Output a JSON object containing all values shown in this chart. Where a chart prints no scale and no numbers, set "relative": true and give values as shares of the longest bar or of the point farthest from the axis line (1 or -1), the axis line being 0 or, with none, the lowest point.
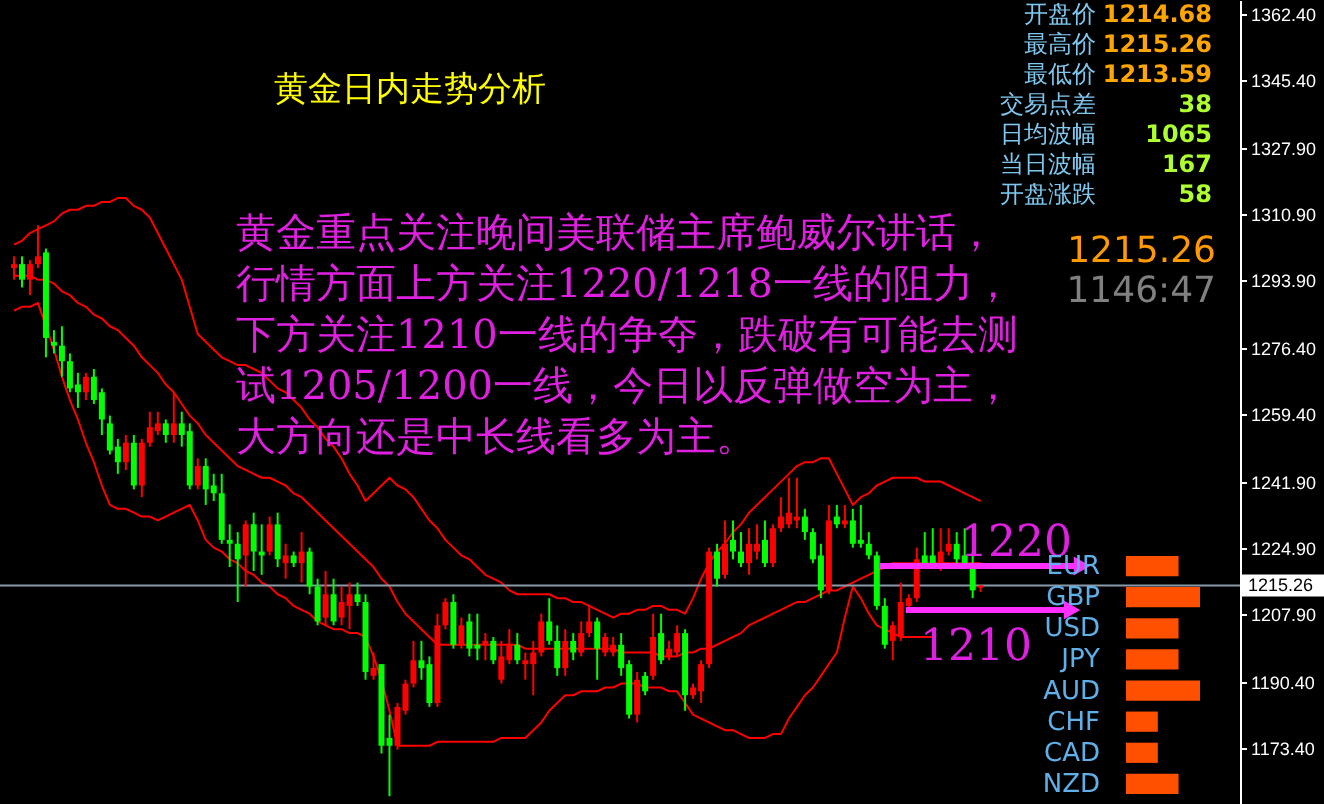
{
  "chart_data": [
    {
      "type": "candlestick",
      "title": "黄金日内走势分析",
      "categories": [
        null,
        null,
        null,
        null,
        null,
        null,
        null,
        null,
        null,
        null,
        null,
        null,
        null,
        null,
        null,
        null,
        null,
        null,
        null,
        null,
        null,
        null,
        null,
        null,
        null,
        null,
        null,
        null,
        null,
        null,
        null,
        null,
        null,
        null,
        null,
        null,
        null,
        null,
        null,
        null,
        null,
        null,
        null,
        null,
        null,
        null,
        null,
        null,
        null,
        null,
        null,
        null,
        null,
        null,
        null,
        null,
        null,
        null,
        null,
        null,
        null,
        null,
        null,
        null,
        null,
        null,
        null,
        null,
        null,
        null,
        null,
        null,
        null,
        null,
        null,
        null,
        null,
        null,
        null,
        null,
        null,
        null,
        null,
        null,
        null,
        null,
        null,
        null,
        null,
        null,
        null,
        null,
        null,
        null,
        null,
        null,
        null,
        null,
        null,
        null,
        null,
        null,
        null,
        null,
        null,
        null,
        null,
        null,
        null,
        null,
        null,
        null,
        null,
        null,
        null,
        null,
        null,
        null,
        null,
        null,
        null,
        null
      ],
      "ohlc": [
        [
          1297,
          1300,
          1294,
          1298
        ],
        [
          1298,
          1300,
          1292,
          1294
        ],
        [
          1294,
          1299,
          1290,
          1298
        ],
        [
          1298,
          1308,
          1297,
          1300
        ],
        [
          1301,
          1302,
          1274,
          1279
        ],
        [
          1278,
          1281,
          1275,
          1277
        ],
        [
          1277,
          1282,
          1269,
          1273
        ],
        [
          1273,
          1275,
          1265,
          1266
        ],
        [
          1267,
          1270,
          1261,
          1265
        ],
        [
          1265,
          1270,
          1263,
          1269
        ],
        [
          1269,
          1271,
          1262,
          1263
        ],
        [
          1265,
          1266,
          1254,
          1258
        ],
        [
          1257,
          1259,
          1249,
          1250
        ],
        [
          1251,
          1253,
          1244,
          1247
        ],
        [
          1247,
          1254,
          1245,
          1252
        ],
        [
          1252,
          1254,
          1240,
          1241
        ],
        [
          1241,
          1253,
          1238,
          1252
        ],
        [
          1252,
          1260,
          1251,
          1256
        ],
        [
          1255,
          1260,
          1254,
          1257
        ],
        [
          1257,
          1258,
          1252,
          1254
        ],
        [
          1254,
          1265,
          1252,
          1257
        ],
        [
          1257,
          1260,
          1251,
          1254
        ],
        [
          1255,
          1257,
          1240,
          1241
        ],
        [
          1241,
          1248,
          1240,
          1246
        ],
        [
          1246,
          1248,
          1236,
          1240
        ],
        [
          1241,
          1244,
          1237,
          1239
        ],
        [
          1239,
          1244,
          1226,
          1227
        ],
        [
          1227,
          1231,
          1220,
          1226
        ],
        [
          1226,
          1229,
          1211,
          1222
        ],
        [
          1223,
          1232,
          1215,
          1231
        ],
        [
          1231,
          1234,
          1219,
          1224
        ],
        [
          1224,
          1231,
          1218,
          1223
        ],
        [
          1224,
          1233,
          1223,
          1231
        ],
        [
          1231,
          1234,
          1220,
          1222
        ],
        [
          1221,
          1226,
          1217,
          1223
        ],
        [
          1223,
          1224,
          1220,
          1221
        ],
        [
          1221,
          1229,
          1216,
          1224
        ],
        [
          1224,
          1225,
          1213,
          1215
        ],
        [
          1215,
          1217,
          1205,
          1206
        ],
        [
          1207,
          1219,
          1205,
          1213
        ],
        [
          1213,
          1217,
          1205,
          1206
        ],
        [
          1207,
          1215,
          1205,
          1211
        ],
        [
          1210,
          1216,
          1204,
          1213
        ],
        [
          1213,
          1216,
          1210,
          1211
        ],
        [
          1211,
          1213,
          1191,
          1193
        ],
        [
          1192,
          1198,
          1191,
          1194
        ],
        [
          1195,
          1195,
          1172,
          1174
        ],
        [
          1176,
          1182,
          1161,
          1174
        ],
        [
          1174,
          1185,
          1173,
          1184
        ],
        [
          1183,
          1191,
          1182,
          1190
        ],
        [
          1190,
          1201,
          1189,
          1196
        ],
        [
          1196,
          1201,
          1191,
          1194
        ],
        [
          1195,
          1197,
          1184,
          1185
        ],
        [
          1185,
          1208,
          1184,
          1205
        ],
        [
          1205,
          1212,
          1204,
          1211
        ],
        [
          1211,
          1213,
          1199,
          1200
        ],
        [
          1200,
          1207,
          1199,
          1205
        ],
        [
          1206,
          1208,
          1197,
          1199
        ],
        [
          1200,
          1208,
          1196,
          1199
        ],
        [
          1200,
          1203,
          1196,
          1201
        ],
        [
          1201,
          1202,
          1195,
          1196
        ],
        [
          1191,
          1201,
          1190,
          1197
        ],
        [
          1196,
          1204,
          1195,
          1200
        ],
        [
          1200,
          1203,
          1195,
          1196
        ],
        [
          1195,
          1198,
          1191,
          1196
        ],
        [
          1195,
          1201,
          1187,
          1198
        ],
        [
          1198,
          1208,
          1197,
          1206
        ],
        [
          1206,
          1212,
          1200,
          1201
        ],
        [
          1201,
          1205,
          1192,
          1194
        ],
        [
          1194,
          1204,
          1192,
          1201
        ],
        [
          1201,
          1203,
          1196,
          1198
        ],
        [
          1198,
          1206,
          1197,
          1203
        ],
        [
          1203,
          1210,
          1202,
          1206
        ],
        [
          1206,
          1207,
          1191,
          1199
        ],
        [
          1198,
          1203,
          1197,
          1202
        ],
        [
          1198,
          1202,
          1197,
          1200
        ],
        [
          1200,
          1203,
          1192,
          1194
        ],
        [
          1195,
          1196,
          1181,
          1182
        ],
        [
          1182,
          1193,
          1180,
          1191
        ],
        [
          1192,
          1193,
          1187,
          1188
        ],
        [
          1192,
          1208,
          1191,
          1202
        ],
        [
          1203,
          1208,
          1195,
          1196
        ],
        [
          1197,
          1201,
          1196,
          1199
        ],
        [
          1198,
          1205,
          1197,
          1203
        ],
        [
          1203,
          1204,
          1183,
          1187
        ],
        [
          1187,
          1190,
          1186,
          1189
        ],
        [
          1188,
          1196,
          1185,
          1195
        ],
        [
          1195,
          1225,
          1194,
          1224
        ],
        [
          1224,
          1226,
          1215,
          1217
        ],
        [
          1218,
          1232,
          1217,
          1226
        ],
        [
          1227,
          1232,
          1222,
          1224
        ],
        [
          1224,
          1229,
          1220,
          1221
        ],
        [
          1221,
          1230,
          1218,
          1226
        ],
        [
          1224,
          1231,
          1222,
          1226
        ],
        [
          1227,
          1232,
          1220,
          1221
        ],
        [
          1221,
          1231,
          1220,
          1230
        ],
        [
          1230,
          1238,
          1229,
          1233
        ],
        [
          1231,
          1243,
          1230,
          1234
        ],
        [
          1232,
          1243,
          1230,
          1233
        ],
        [
          1233,
          1235,
          1227,
          1229
        ],
        [
          1229,
          1230,
          1221,
          1222
        ],
        [
          1223,
          1226,
          1212,
          1214
        ],
        [
          1214,
          1236,
          1213,
          1232
        ],
        [
          1233,
          1236,
          1230,
          1231
        ],
        [
          1231,
          1236,
          1230,
          1232
        ],
        [
          1232,
          1235,
          1225,
          1226
        ],
        [
          1227,
          1236,
          1225,
          1226
        ],
        [
          1226,
          1229,
          1222,
          1223
        ],
        [
          1223,
          1224,
          1209,
          1210
        ],
        [
          1210,
          1212,
          1199,
          1200
        ],
        [
          1201,
          1206,
          1196,
          1205
        ],
        [
          1202,
          1216,
          1201,
          1211
        ],
        [
          1210,
          1213,
          1209,
          1212
        ],
        [
          1212,
          1225,
          1211,
          1222
        ],
        [
          1223,
          1229,
          1220,
          1221
        ],
        [
          1223,
          1230,
          1220,
          1221
        ],
        [
          1221,
          1230,
          1219,
          1224
        ],
        [
          1224,
          1230,
          1223,
          1226
        ],
        [
          1226,
          1229,
          1221,
          1222
        ],
        [
          1223,
          1230,
          1220,
          1221
        ],
        [
          1221,
          1224,
          1212,
          1214
        ],
        [
          1214.68,
          1215.26,
          1213.59,
          1215.26
        ]
      ],
      "colors": [
        "#ff0000",
        "#00ff00",
        "#ff0000",
        "#ff0000",
        "#00ff00",
        "#00ff00",
        "#00ff00",
        "#00ff00",
        "#00ff00",
        "#ff0000",
        "#00ff00",
        "#00ff00",
        "#00ff00",
        "#00ff00",
        "#ff0000",
        "#00ff00",
        "#ff0000",
        "#ff0000",
        "#ff0000",
        "#00ff00",
        "#ff0000",
        "#00ff00",
        "#00ff00",
        "#ff0000",
        "#00ff00",
        "#00ff00",
        "#00ff00",
        "#00ff00",
        "#00ff00",
        "#ff0000",
        "#00ff00",
        "#00ff00",
        "#ff0000",
        "#00ff00",
        "#ff0000",
        "#00ff00",
        "#ff0000",
        "#00ff00",
        "#00ff00",
        "#ff0000",
        "#00ff00",
        "#ff0000",
        "#ff0000",
        "#00ff00",
        "#00ff00",
        "#ff0000",
        "#00ff00",
        "#00ff00",
        "#ff0000",
        "#ff0000",
        "#ff0000",
        "#00ff00",
        "#00ff00",
        "#ff0000",
        "#ff0000",
        "#00ff00",
        "#ff0000",
        "#00ff00",
        "#00ff00",
        "#ff0000",
        "#00ff00",
        "#ff0000",
        "#ff0000",
        "#00ff00",
        "#ff0000",
        "#ff0000",
        "#ff0000",
        "#00ff00",
        "#00ff00",
        "#ff0000",
        "#00ff00",
        "#ff0000",
        "#ff0000",
        "#00ff00",
        "#ff0000",
        "#ff0000",
        "#00ff00",
        "#00ff00",
        "#ff0000",
        "#00ff00",
        "#ff0000",
        "#00ff00",
        "#ff0000",
        "#ff0000",
        "#00ff00",
        "#ff0000",
        "#ff0000",
        "#ff0000",
        "#00ff00",
        "#ff0000",
        "#00ff00",
        "#00ff00",
        "#ff0000",
        "#ff0000",
        "#00ff00",
        "#ff0000",
        "#ff0000",
        "#ff0000",
        "#ff0000",
        "#00ff00",
        "#00ff00",
        "#00ff00",
        "#ff0000",
        "#00ff00",
        "#ff0000",
        "#00ff00",
        "#00ff00",
        "#00ff00",
        "#00ff00",
        "#00ff00",
        "#ff0000",
        "#ff0000",
        "#ff0000",
        "#ff0000",
        "#00ff00",
        "#00ff00",
        "#ff0000",
        "#ff0000",
        "#00ff00",
        "#00ff00",
        "#00ff00",
        "#ff0000"
      ],
      "series": [
        {
          "type": "line",
          "color": "#ff0000",
          "values": [
            1303,
            1304,
            1306,
            1307,
            1308,
            1309,
            1311,
            1312,
            1312,
            1313,
            1313,
            1314,
            1314,
            1315,
            1315,
            1313,
            1312,
            1310,
            1306,
            1302,
            1298,
            1294,
            1287,
            1280,
            1278,
            1276,
            1274,
            1273,
            1272,
            1272,
            1271,
            1270,
            1268,
            1266,
            1265,
            1263,
            1261,
            1258,
            1256,
            1253,
            1251,
            1248,
            1244,
            1241,
            1237,
            1239,
            1241,
            1243,
            1241,
            1240,
            1238,
            1235,
            1232,
            1230,
            1227,
            1225,
            1223,
            1222,
            1220,
            1218,
            1217,
            1216,
            1214,
            1213,
            1213,
            1213,
            1213,
            1213,
            1212,
            1212,
            1211,
            1211,
            1210,
            1209,
            1208,
            1207,
            1208,
            1208,
            1209,
            1209,
            1210,
            1210,
            1209,
            1209,
            1208,
            1212,
            1217,
            1221,
            1224,
            1226,
            1229,
            1231,
            1234,
            1236,
            1238,
            1240,
            1242,
            1244,
            1246,
            1247,
            1247,
            1248,
            1248,
            1244,
            1240,
            1236,
            1238,
            1239,
            1241,
            1242,
            1243,
            1243,
            1243,
            1243,
            1242,
            1242,
            1242,
            1241,
            1240,
            1239,
            1238,
            1237
          ]
        },
        {
          "type": "line",
          "color": "#ff0000",
          "values": [
            1295,
            1295,
            1295,
            1294,
            1294,
            1293,
            1291,
            1290,
            1288,
            1287,
            1285,
            1284,
            1282,
            1281,
            1279,
            1277,
            1274,
            1272,
            1270,
            1267,
            1265,
            1262,
            1259,
            1257,
            1254,
            1252,
            1250,
            1248,
            1246,
            1245,
            1244,
            1243,
            1243,
            1242,
            1241,
            1239,
            1238,
            1236,
            1234,
            1232,
            1230,
            1228,
            1226,
            1224,
            1222,
            1220,
            1217,
            1215,
            1211,
            1208,
            1206,
            1204,
            1202,
            1200,
            1200,
            1200,
            1200,
            1200,
            1200,
            1200,
            1200,
            1200,
            1200,
            1200,
            1199,
            1199,
            1199,
            1199,
            1199,
            1199,
            1199,
            1199,
            1199,
            1199,
            1199,
            1199,
            1198,
            1198,
            1198,
            1198,
            1198,
            1197,
            1197,
            1197,
            1198,
            1198,
            1199,
            1199,
            1200,
            1201,
            1202,
            1203,
            1205,
            1206,
            1207,
            1208,
            1209,
            1210,
            1211,
            1211,
            1212,
            1213,
            1214,
            1214,
            1215,
            1216,
            1217,
            1218,
            1219,
            1220,
            1221,
            1221,
            1221,
            1221,
            1221,
            1221,
            1221,
            1221,
            1221,
            1221,
            1221,
            1221
          ]
        },
        {
          "type": "line",
          "color": "#ff0000",
          "values": [
            1286,
            1287,
            1287,
            1288,
            1282,
            1276,
            1269,
            1263,
            1258,
            1252,
            1247,
            1241,
            1236,
            1235,
            1235,
            1234,
            1233,
            1233,
            1232,
            1233,
            1234,
            1235,
            1236,
            1232,
            1227,
            1225,
            1224,
            1222,
            1221,
            1219,
            1218,
            1216,
            1215,
            1213,
            1212,
            1210,
            1209,
            1208,
            1206,
            1205,
            1204,
            1204,
            1203,
            1203,
            1202,
            1197,
            1191,
            1183,
            1174,
            1174,
            1174,
            1174,
            1174,
            1175,
            1175,
            1175,
            1175,
            1175,
            1175,
            1175,
            1175,
            1176,
            1176,
            1176,
            1176,
            1178,
            1180,
            1183,
            1185,
            1187,
            1187,
            1188,
            1188,
            1188,
            1189,
            1189,
            1190,
            1190,
            1190,
            1189,
            1189,
            1189,
            1188,
            1188,
            1185,
            1182,
            1181,
            1180,
            1179,
            1178,
            1178,
            1177,
            1176,
            1176,
            1176,
            1177,
            1177,
            1181,
            1184,
            1187,
            1189,
            1192,
            1195,
            1198,
            1207,
            1215,
            1212,
            1208,
            1205,
            1204,
            1203,
            1202,
            1202,
            1202,
            1202,
            1202,
            null,
            null,
            null,
            null,
            null,
            null
          ]
        }
      ],
      "ylim": [
        1159,
        1366
      ],
      "yticks": [
        {
          "value": 1362.4,
          "label": "1362.40"
        },
        {
          "value": 1345.4,
          "label": "1345.40"
        },
        {
          "value": 1327.9,
          "label": "1327.90"
        },
        {
          "value": 1310.9,
          "label": "1310.90"
        },
        {
          "value": 1293.9,
          "label": "1293.90"
        },
        {
          "value": 1276.4,
          "label": "1276.40"
        },
        {
          "value": 1259.4,
          "label": "1259.40"
        },
        {
          "value": 1241.9,
          "label": "1241.90"
        },
        {
          "value": 1224.9,
          "label": "1224.90"
        },
        {
          "value": 1207.9,
          "label": "1207.90"
        },
        {
          "value": 1190.4,
          "label": "1190.40"
        },
        {
          "value": 1173.4,
          "label": "1173.40"
        }
      ],
      "tick_labels": "y",
      "ref_lines": [
        {
          "axis": "y",
          "value": 1215.26,
          "label": "1215.26",
          "color": "#8a9aaa"
        }
      ],
      "annotations": [
        "黄金重点关注晚间美联储主席鲍威尔讲话，",
        "行情方面上方关注1220/1218一线的阻力，",
        "下方关注1210一线的争夺，跌破有可能去测",
        "试1205/1200一线，今日以反弹做空为主，",
        "大方向还是中长线看多为主。",
        "1215.26",
        "1146:47",
        "开盘价",
        "1214.68",
        "最高价",
        "1215.26",
        "最低价",
        "1213.59",
        "交易点差",
        "38",
        "日均波幅",
        "1065",
        "当日波幅",
        "167",
        "开盘涨跌",
        "58",
        "1220",
        "1210"
      ]
    },
    {
      "type": "bar",
      "orientation": "horizontal",
      "relative": true,
      "categories": [
        "EUR",
        "GBP",
        "USD",
        "JPY",
        "AUD",
        "CHF",
        "CAD",
        "NZD"
      ],
      "values": [
        0.71,
        1,
        0.71,
        0.71,
        1,
        0.43,
        0.43,
        0.71
      ],
      "color": "#ff5000"
    }
  ]
}
